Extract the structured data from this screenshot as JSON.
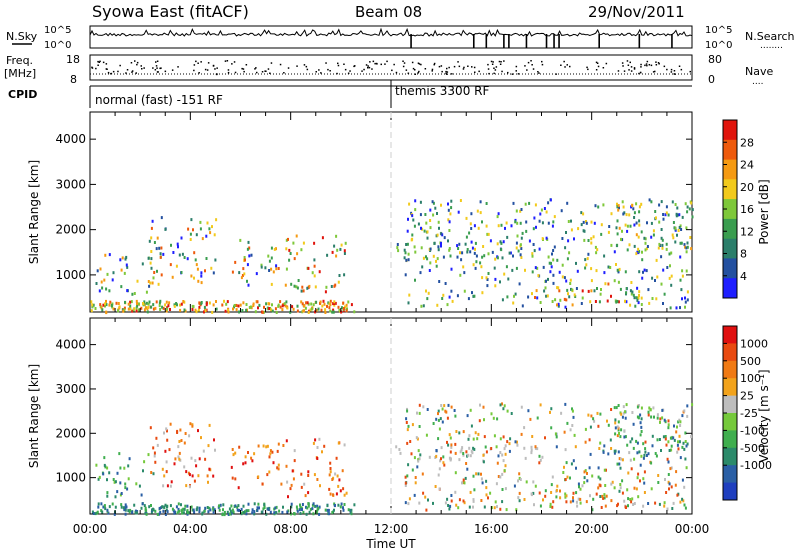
{
  "header": {
    "title": "Syowa East (fitACF)",
    "beam": "Beam 08",
    "date": "29/Nov/2011"
  },
  "chart_data": [
    {
      "type": "line",
      "name": "noise-panel",
      "left_label": "N.Sky",
      "right_label": "N.Search",
      "right_label_dots": "........",
      "left_ticks": [
        "10^5",
        "10^0"
      ],
      "right_ticks": [
        "10^5",
        "10^0"
      ],
      "dips_hours": [
        12.8,
        15.3,
        15.8,
        16.5,
        16.7,
        17.4,
        18.2,
        18.5,
        18.7,
        20.3,
        21.9,
        23.2
      ]
    },
    {
      "type": "scatter",
      "name": "freq-panel",
      "left_label": "Freq.",
      "left_unit": "[MHz]",
      "left_ticks": [
        "18",
        "8"
      ],
      "right_label": "Nave",
      "right_label_dots": "....",
      "right_ticks": [
        "80",
        "0"
      ],
      "cpid_label": "CPID",
      "modes": [
        {
          "label": "normal (fast) -151 RF",
          "start_hour": 0
        },
        {
          "label": "themis 3300 RF",
          "start_hour": 12
        }
      ]
    },
    {
      "type": "heatmap",
      "name": "power-panel",
      "ylabel": "Slant Range [km]",
      "xlabel": "",
      "ylim": [
        180,
        4600
      ],
      "yticks": [
        "1000",
        "2000",
        "3000",
        "4000"
      ],
      "colorbar": {
        "label": "Power [dB]",
        "ticks": [
          "4",
          "8",
          "12",
          "16",
          "20",
          "24",
          "28"
        ],
        "colors": [
          "#1f1fff",
          "#2350a0",
          "#2b7e6a",
          "#3a9d4f",
          "#7ec83a",
          "#f2ca1c",
          "#f59a12",
          "#ee5a0c",
          "#e0140c"
        ]
      },
      "scatter_regions": [
        {
          "t": [
            0.2,
            2.5
          ],
          "r": [
            600,
            1600
          ],
          "c": [
            0,
            6
          ]
        },
        {
          "t": [
            2.3,
            5.0
          ],
          "r": [
            800,
            2300
          ],
          "c": [
            0,
            7
          ]
        },
        {
          "t": [
            5.5,
            7.8
          ],
          "r": [
            800,
            1800
          ],
          "c": [
            0,
            7
          ]
        },
        {
          "t": [
            7.8,
            10.2
          ],
          "r": [
            600,
            1900
          ],
          "c": [
            2,
            8
          ]
        },
        {
          "t": [
            12.0,
            18.0
          ],
          "r": [
            1400,
            1750
          ],
          "c": [
            1,
            5
          ]
        },
        {
          "t": [
            12.5,
            23.8
          ],
          "r": [
            300,
            2700
          ],
          "c": [
            0,
            5
          ]
        },
        {
          "t": [
            17.5,
            21.8
          ],
          "r": [
            350,
            900
          ],
          "c": [
            2,
            8
          ]
        },
        {
          "t": [
            20.8,
            24.0
          ],
          "r": [
            1500,
            2700
          ],
          "c": [
            1,
            6
          ]
        }
      ]
    },
    {
      "type": "heatmap",
      "name": "velocity-panel",
      "ylabel": "Slant Range [km]",
      "xlabel": "Time UT",
      "ylim": [
        180,
        4600
      ],
      "yticks": [
        "1000",
        "2000",
        "3000",
        "4000"
      ],
      "xticks": [
        "00:00",
        "04:00",
        "08:00",
        "12:00",
        "16:00",
        "20:00",
        "00:00"
      ],
      "xlim_hours": [
        0,
        24
      ],
      "colorbar": {
        "label": "Velocity [m s⁻¹]",
        "ticks": [
          "1000",
          "500",
          "100",
          "25",
          "-25",
          "-100",
          "-500",
          "-1000"
        ],
        "colors": [
          "#1f3fbf",
          "#2a5fa5",
          "#2b8a6a",
          "#3fae4e",
          "#75c93b",
          "#bdbdbd",
          "#f2a31c",
          "#f07a14",
          "#e84a10",
          "#e01010"
        ]
      },
      "scatter_regions": [
        {
          "t": [
            0.2,
            2.5
          ],
          "r": [
            600,
            1600
          ],
          "c": [
            1,
            4
          ]
        },
        {
          "t": [
            2.3,
            5.0
          ],
          "r": [
            800,
            2300
          ],
          "c": [
            5,
            9
          ]
        },
        {
          "t": [
            5.5,
            7.8
          ],
          "r": [
            800,
            1800
          ],
          "c": [
            6,
            9
          ]
        },
        {
          "t": [
            7.8,
            10.2
          ],
          "r": [
            600,
            1900
          ],
          "c": [
            5,
            9
          ]
        },
        {
          "t": [
            12.0,
            18.0
          ],
          "r": [
            1400,
            1750
          ],
          "c": [
            5,
            5
          ]
        },
        {
          "t": [
            12.5,
            23.8
          ],
          "r": [
            300,
            2700
          ],
          "c": [
            1,
            8
          ]
        },
        {
          "t": [
            17.5,
            21.8
          ],
          "r": [
            350,
            900
          ],
          "c": [
            4,
            8
          ]
        },
        {
          "t": [
            20.8,
            24.0
          ],
          "r": [
            1500,
            2700
          ],
          "c": [
            1,
            5
          ]
        }
      ]
    }
  ]
}
